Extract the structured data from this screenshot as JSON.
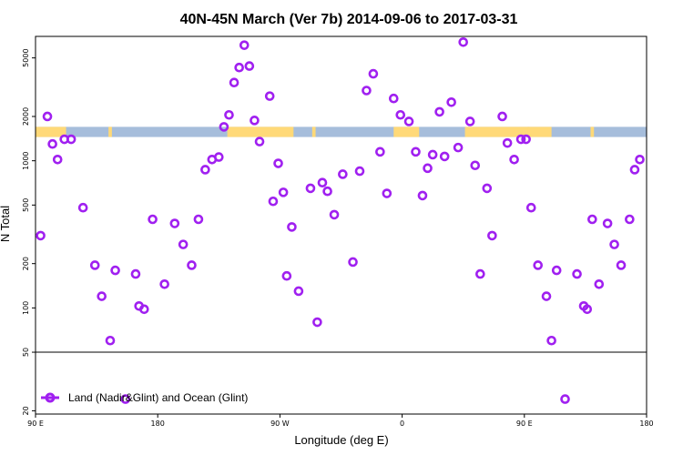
{
  "colors": {
    "point": "#a020f0",
    "land_band": "#ffd978",
    "ocean_band": "#a6bddb",
    "frame": "#000000"
  },
  "chart_data": {
    "type": "scatter",
    "title": "40N-45N March (Ver 7b)   2014-09-06 to 2017-03-31",
    "xlabel": "Longitude (deg E)",
    "ylabel": "N Total",
    "y_scale": "log",
    "xlim": [
      -90,
      270
    ],
    "ylim": [
      19,
      7000
    ],
    "x_ticks": [
      {
        "value": -90,
        "label": "90 E"
      },
      {
        "value": -18,
        "label": "180"
      },
      {
        "value": 54,
        "label": "90 W"
      },
      {
        "value": 126,
        "label": "0"
      },
      {
        "value": 198,
        "label": "90 E"
      },
      {
        "value": 270,
        "label": "180"
      }
    ],
    "y_ticks": [
      {
        "value": 20,
        "label": "20"
      },
      {
        "value": 50,
        "label": "50"
      },
      {
        "value": 100,
        "label": "100"
      },
      {
        "value": 200,
        "label": "200"
      },
      {
        "value": 500,
        "label": "500"
      },
      {
        "value": 1000,
        "label": "1000"
      },
      {
        "value": 2000,
        "label": "2000"
      },
      {
        "value": 5000,
        "label": "5000"
      }
    ],
    "reference_line": 50,
    "land_ocean_band": {
      "y_low": 1450,
      "y_high": 1700,
      "land_ranges": [
        [
          -90,
          -72
        ],
        [
          -47,
          -45
        ],
        [
          23,
          62
        ],
        [
          73,
          75
        ],
        [
          121,
          136
        ],
        [
          163,
          201
        ],
        [
          200,
          214
        ],
        [
          237,
          239
        ]
      ]
    },
    "legend": {
      "position": "bottom-left",
      "label": "Land (Nadir&Glint) and Ocean (Glint)"
    },
    "series": [
      {
        "name": "Land (Nadir&Glint) and Ocean (Glint)",
        "x": [
          -87,
          -83,
          -80,
          -77,
          -73,
          -69,
          -62,
          -55,
          -51,
          -46,
          -43,
          -37,
          -31,
          -29,
          -26,
          -21,
          -14,
          -8,
          -3,
          2,
          6,
          10,
          14,
          18,
          21,
          24,
          27,
          30,
          33,
          36,
          39,
          42,
          48,
          50,
          53,
          56,
          58,
          61,
          65,
          72,
          76,
          79,
          82,
          86,
          91,
          97,
          101,
          105,
          109,
          113,
          117,
          121,
          125,
          130,
          134,
          138,
          141,
          144,
          148,
          151,
          155,
          159,
          162,
          166,
          169,
          172,
          176,
          179,
          185,
          188,
          192,
          196,
          199,
          202,
          206,
          211,
          214,
          217,
          222,
          229,
          233,
          235,
          238,
          242,
          247,
          251,
          255,
          260,
          263,
          266
        ],
        "y": [
          310,
          2000,
          1300,
          1020,
          1400,
          1400,
          480,
          195,
          120,
          60,
          180,
          24,
          170,
          103,
          98,
          400,
          145,
          375,
          270,
          195,
          400,
          870,
          1020,
          1060,
          1700,
          2050,
          3400,
          4300,
          6100,
          4400,
          1880,
          1350,
          2750,
          530,
          960,
          610,
          165,
          355,
          130,
          650,
          80,
          710,
          620,
          430,
          810,
          205,
          850,
          3000,
          3900,
          1150,
          600,
          2650,
          2050,
          1850,
          1150,
          580,
          890,
          1100,
          2150,
          1070,
          2500,
          1230,
          6400,
          1850,
          930,
          170,
          650,
          310,
          2000,
          1320,
          1020,
          1400,
          1400,
          480,
          195,
          120,
          60,
          180,
          24,
          170,
          103,
          98,
          400,
          145,
          375,
          270,
          195,
          400,
          870,
          1020
        ]
      }
    ]
  }
}
